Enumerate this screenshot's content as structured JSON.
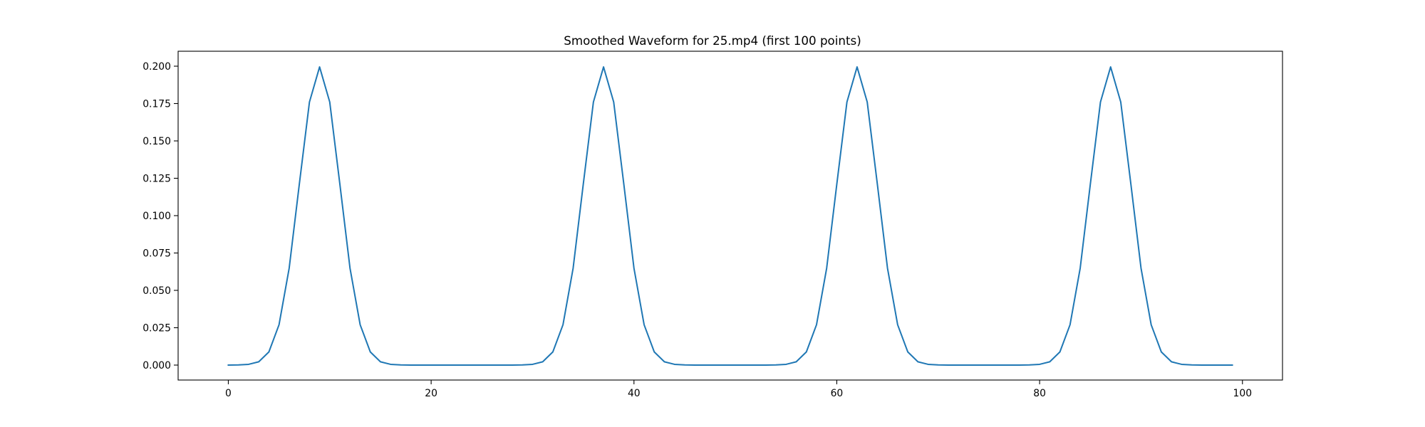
{
  "chart_data": {
    "type": "line",
    "title": "Smoothed Waveform for 25.mp4 (first 100 points)",
    "xlabel": "",
    "ylabel": "",
    "xlim": [
      -4.95,
      103.95
    ],
    "ylim": [
      -0.01,
      0.21
    ],
    "x_ticks": [
      0,
      20,
      40,
      60,
      80,
      100
    ],
    "x_tick_labels": [
      "0",
      "20",
      "40",
      "60",
      "80",
      "100"
    ],
    "y_ticks": [
      0,
      0.025,
      0.05,
      0.075,
      0.1,
      0.125,
      0.15,
      0.175,
      0.2
    ],
    "y_tick_labels": [
      "0.000",
      "0.025",
      "0.050",
      "0.075",
      "0.100",
      "0.125",
      "0.150",
      "0.175",
      "0.200"
    ],
    "grid": false,
    "legend": "none",
    "series": [
      {
        "color": "#1f77b4",
        "x": [
          0,
          1,
          2,
          3,
          4,
          5,
          6,
          7,
          8,
          9,
          10,
          11,
          12,
          13,
          14,
          15,
          16,
          17,
          18,
          19,
          20,
          21,
          22,
          23,
          24,
          25,
          26,
          27,
          28,
          29,
          30,
          31,
          32,
          33,
          34,
          35,
          36,
          37,
          38,
          39,
          40,
          41,
          42,
          43,
          44,
          45,
          46,
          47,
          48,
          49,
          50,
          51,
          52,
          53,
          54,
          55,
          56,
          57,
          58,
          59,
          60,
          61,
          62,
          63,
          64,
          65,
          66,
          67,
          68,
          69,
          70,
          71,
          72,
          73,
          74,
          75,
          76,
          77,
          78,
          79,
          80,
          81,
          82,
          83,
          84,
          85,
          86,
          87,
          88,
          89,
          90,
          91,
          92,
          93,
          94,
          95,
          96,
          97,
          98,
          99
        ],
        "y": [
          0,
          0.0001,
          0.0005,
          0.0022,
          0.0088,
          0.027,
          0.0648,
          0.121,
          0.176,
          0.1995,
          0.176,
          0.121,
          0.0648,
          0.027,
          0.0088,
          0.0022,
          0.0005,
          0.0001,
          0,
          0,
          0,
          0,
          0,
          0,
          0,
          0,
          0,
          0,
          0,
          0.0001,
          0.0005,
          0.0022,
          0.0088,
          0.027,
          0.0648,
          0.121,
          0.176,
          0.1995,
          0.176,
          0.121,
          0.0648,
          0.027,
          0.0088,
          0.0022,
          0.0005,
          0.0001,
          0,
          0,
          0,
          0,
          0,
          0,
          0,
          0,
          0.0001,
          0.0005,
          0.0022,
          0.0088,
          0.027,
          0.0648,
          0.121,
          0.176,
          0.1995,
          0.176,
          0.121,
          0.0648,
          0.027,
          0.0088,
          0.0022,
          0.0005,
          0.0001,
          0,
          0,
          0,
          0,
          0,
          0,
          0,
          0,
          0.0001,
          0.0005,
          0.0022,
          0.0088,
          0.027,
          0.0648,
          0.121,
          0.176,
          0.1995,
          0.176,
          0.121,
          0.0648,
          0.027,
          0.0088,
          0.0022,
          0.0005,
          0.0001,
          0,
          0,
          0,
          0
        ]
      }
    ]
  }
}
